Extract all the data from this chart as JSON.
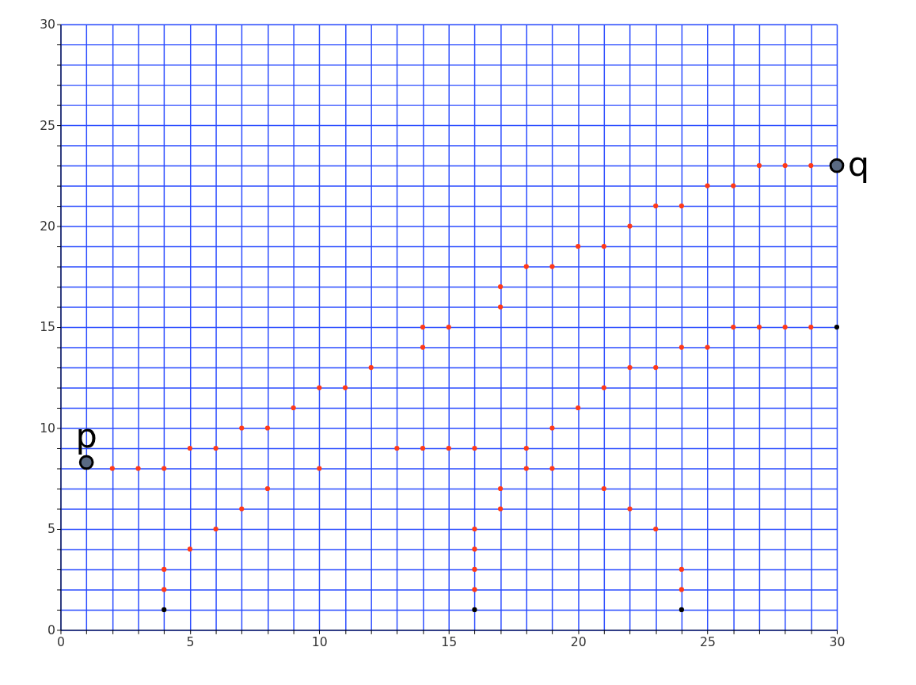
{
  "chart_data": {
    "type": "scatter",
    "xlim": [
      0,
      30
    ],
    "ylim": [
      0,
      30
    ],
    "xticks": [
      0,
      {
        "value": 1,
        "label": null
      },
      {
        "value": 2,
        "label": null
      },
      {
        "value": 3,
        "label": null
      },
      {
        "value": 4,
        "label": null
      },
      5,
      {
        "value": 6,
        "label": null
      },
      {
        "value": 7,
        "label": null
      },
      {
        "value": 8,
        "label": null
      },
      {
        "value": 9,
        "label": null
      },
      10,
      {
        "value": 11,
        "label": null
      },
      {
        "value": 12,
        "label": null
      },
      {
        "value": 13,
        "label": null
      },
      {
        "value": 14,
        "label": null
      },
      15,
      {
        "value": 16,
        "label": null
      },
      {
        "value": 17,
        "label": null
      },
      {
        "value": 18,
        "label": null
      },
      {
        "value": 19,
        "label": null
      },
      20,
      {
        "value": 21,
        "label": null
      },
      {
        "value": 22,
        "label": null
      },
      {
        "value": 23,
        "label": null
      },
      {
        "value": 24,
        "label": null
      },
      25,
      {
        "value": 26,
        "label": null
      },
      {
        "value": 27,
        "label": null
      },
      {
        "value": 28,
        "label": null
      },
      {
        "value": 29,
        "label": null
      },
      30
    ],
    "yticks": [
      0,
      {
        "value": 1,
        "label": null
      },
      {
        "value": 2,
        "label": null
      },
      {
        "value": 3,
        "label": null
      },
      {
        "value": 4,
        "label": null
      },
      5,
      {
        "value": 6,
        "label": null
      },
      {
        "value": 7,
        "label": null
      },
      {
        "value": 8,
        "label": null
      },
      {
        "value": 9,
        "label": null
      },
      10,
      {
        "value": 11,
        "label": null
      },
      {
        "value": 12,
        "label": null
      },
      {
        "value": 13,
        "label": null
      },
      {
        "value": 14,
        "label": null
      },
      15,
      {
        "value": 16,
        "label": null
      },
      {
        "value": 17,
        "label": null
      },
      {
        "value": 18,
        "label": null
      },
      {
        "value": 19,
        "label": null
      },
      20,
      {
        "value": 21,
        "label": null
      },
      {
        "value": 22,
        "label": null
      },
      {
        "value": 23,
        "label": null
      },
      {
        "value": 24,
        "label": null
      },
      25,
      {
        "value": 26,
        "label": null
      },
      {
        "value": 27,
        "label": null
      },
      {
        "value": 28,
        "label": null
      },
      {
        "value": 29,
        "label": null
      },
      30
    ],
    "grid": true,
    "marker": "circle",
    "series": [
      {
        "color": "#ff3a1a",
        "x": [
          27,
          28,
          29,
          25,
          26,
          23,
          24,
          22,
          20,
          21,
          18,
          19,
          17,
          17,
          14,
          15,
          26,
          27,
          28,
          29,
          14,
          24,
          25,
          12,
          22,
          23,
          10,
          11,
          21,
          9,
          20,
          7,
          8,
          19,
          5,
          6,
          13,
          14,
          15,
          16,
          18,
          2,
          3,
          4,
          10,
          18,
          19,
          8,
          17,
          21,
          7,
          17,
          22,
          6,
          16,
          23,
          5,
          16,
          4,
          16,
          24,
          4,
          16,
          24
        ],
        "values": [
          23,
          23,
          23,
          22,
          22,
          21,
          21,
          20,
          19,
          19,
          18,
          18,
          17,
          16,
          15,
          15,
          15,
          15,
          15,
          15,
          14,
          14,
          14,
          13,
          13,
          13,
          12,
          12,
          12,
          11,
          11,
          10,
          10,
          10,
          9,
          9,
          9,
          9,
          9,
          9,
          9,
          8,
          8,
          8,
          8,
          8,
          8,
          7,
          7,
          7,
          6,
          6,
          6,
          5,
          5,
          5,
          4,
          4,
          3,
          3,
          3,
          2,
          2,
          2
        ]
      },
      {
        "color": "#000000",
        "x": [
          4,
          16,
          24,
          30
        ],
        "values": [
          1,
          1,
          1,
          15
        ]
      },
      {
        "color": "#5a6a82",
        "x": [
          1,
          30
        ],
        "values": [
          8.3,
          23
        ]
      }
    ],
    "annotations": [
      {
        "text": "p",
        "x": 1,
        "y": 8.3
      },
      {
        "text": "q",
        "x": 30,
        "y": 23
      }
    ]
  }
}
